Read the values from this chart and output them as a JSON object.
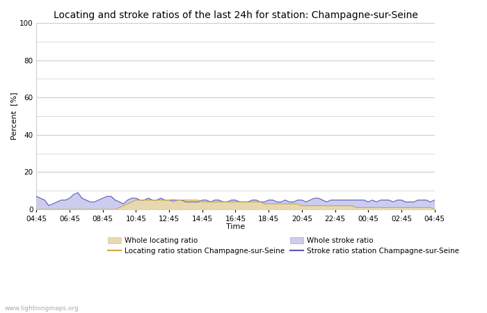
{
  "title": "Locating and stroke ratios of the last 24h for station: Champagne-sur-Seine",
  "xlabel": "Time",
  "ylabel": "Percent  [%]",
  "ylim": [
    0,
    100
  ],
  "yticks": [
    0,
    20,
    40,
    60,
    80,
    100
  ],
  "yminor": [
    10,
    30,
    50,
    70,
    90
  ],
  "x_labels": [
    "04:45",
    "06:45",
    "08:45",
    "10:45",
    "12:45",
    "14:45",
    "16:45",
    "18:45",
    "20:45",
    "22:45",
    "00:45",
    "02:45",
    "04:45"
  ],
  "watermark": "www.lightningmaps.org",
  "whole_stroke_ratio": [
    7,
    6,
    5,
    2,
    3,
    4,
    5,
    5,
    6,
    8,
    9,
    6,
    5,
    4,
    4,
    5,
    6,
    7,
    7,
    5,
    4,
    3,
    5,
    6,
    6,
    5,
    5,
    6,
    5,
    5,
    6,
    5,
    5,
    5,
    5,
    5,
    4,
    4,
    4,
    4,
    5,
    5,
    4,
    5,
    5,
    4,
    4,
    5,
    5,
    4,
    4,
    4,
    5,
    5,
    4,
    4,
    5,
    5,
    4,
    4,
    5,
    4,
    4,
    5,
    5,
    4,
    5,
    6,
    6,
    5,
    4,
    5,
    5,
    5,
    5,
    5,
    5,
    5,
    5,
    5,
    4,
    5,
    4,
    5,
    5,
    5,
    4,
    5,
    5,
    4,
    4,
    4,
    5,
    5,
    5,
    4,
    5
  ],
  "whole_locating_ratio": [
    0,
    0,
    0,
    0,
    0,
    0,
    0,
    0,
    0,
    0,
    0,
    0,
    0,
    0,
    0,
    0,
    0,
    0,
    0,
    0,
    1,
    2,
    3,
    4,
    5,
    5,
    5,
    5,
    5,
    5,
    5,
    5,
    5,
    4,
    5,
    5,
    5,
    5,
    5,
    5,
    4,
    4,
    4,
    4,
    4,
    4,
    4,
    4,
    4,
    4,
    4,
    4,
    4,
    4,
    4,
    3,
    3,
    3,
    3,
    3,
    3,
    3,
    3,
    3,
    2,
    2,
    2,
    2,
    2,
    2,
    2,
    2,
    2,
    2,
    2,
    2,
    2,
    1,
    1,
    1,
    1,
    1,
    1,
    1,
    1,
    1,
    1,
    1,
    1,
    1,
    1,
    1,
    1,
    1,
    1,
    1,
    0
  ],
  "locating_line_color": "#c8a840",
  "stroke_line_color": "#5555bb",
  "whole_stroke_color": "#ccccee",
  "whole_locating_color": "#e8d8b0",
  "bg_color": "#ffffff",
  "plot_bg_color": "#ffffff",
  "grid_color": "#cccccc",
  "title_fontsize": 10,
  "axis_fontsize": 8,
  "tick_fontsize": 7.5
}
